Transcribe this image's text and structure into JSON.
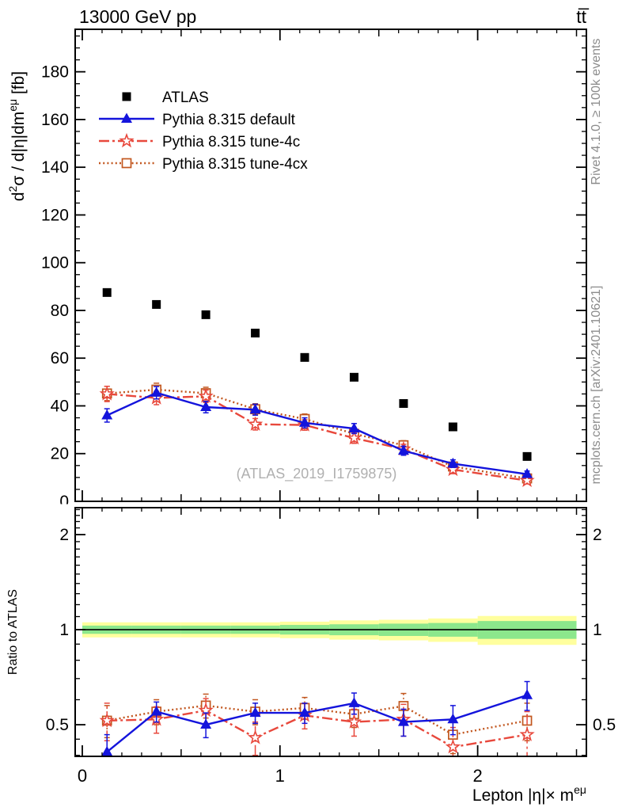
{
  "side_notes": {
    "rivet": "Rivet 4.1.0, ≥ 100k events",
    "mcplots": "mcplots.cern.ch [arXiv:2401.10621]"
  },
  "chart_data": {
    "type": "line",
    "title_left": "13000 GeV pp",
    "title_right": "tt̅",
    "watermark": "(ATLAS_2019_I1759875)",
    "xlabel": "Lepton |η| × m^eμ",
    "ylabel": "d²σ / d|η|dm^eμ [fb]",
    "ratio_label": "Ratio to ATLAS",
    "legend_position": "top-left",
    "grid": false,
    "x": [
      0.125,
      0.375,
      0.625,
      0.875,
      1.125,
      1.375,
      1.625,
      1.875,
      2.25
    ],
    "axes": {
      "x": {
        "min": -0.036,
        "max": 2.55,
        "majors": [
          0,
          1,
          2
        ],
        "labels": [
          "0",
          "1",
          "2"
        ],
        "mediums": [
          0.5,
          1.5,
          2.5
        ],
        "minor_step": 0.1,
        "title_parts": [
          {
            "text": "Lepton |η|× m"
          },
          {
            "text": "eμ",
            "sup": true
          }
        ]
      },
      "y": {
        "min": 0,
        "max": 197.8,
        "major_step": 20,
        "minor_step": 5,
        "tick_values": [
          0,
          20,
          40,
          60,
          80,
          100,
          120,
          140,
          160,
          180
        ],
        "tick_labels": [
          "0",
          "20",
          "40",
          "60",
          "80",
          "100",
          "120",
          "140",
          "160",
          "180"
        ],
        "title_parts": [
          {
            "text": "d"
          },
          {
            "text": "2",
            "sup": true
          },
          {
            "text": "σ / d|η|dm"
          },
          {
            "text": "eμ",
            "sup": true
          },
          {
            "text": " [fb]"
          }
        ]
      },
      "ratio_y": {
        "scale": "log",
        "min": 0.397,
        "max": 2.434,
        "majors": [
          0.5,
          1,
          2
        ],
        "tick_labels": [
          "0.5",
          "1",
          "2"
        ],
        "minors": [
          0.4,
          0.45,
          0.6,
          0.7,
          0.8,
          0.9,
          1.1,
          1.2,
          1.3,
          1.4,
          1.5,
          1.6,
          1.7,
          1.8,
          1.9,
          2.1,
          2.2,
          2.3,
          2.4
        ],
        "title": "Ratio to ATLAS"
      }
    },
    "series": [
      {
        "name": "ATLAS",
        "role": "data",
        "color": "#000000",
        "marker": "filled-square",
        "line": "none",
        "values": [
          87.5,
          82.5,
          78.2,
          70.5,
          60.3,
          52.0,
          41.0,
          31.2,
          18.8
        ]
      },
      {
        "name": "Pythia 8.315 default",
        "role": "mc",
        "color": "#1414dc",
        "marker": "filled-triangle",
        "line": "solid",
        "values": [
          36.0,
          45.5,
          39.5,
          38.4,
          32.9,
          30.5,
          21.2,
          15.8,
          11.4
        ],
        "errors": [
          2.8,
          2.6,
          2.4,
          2.3,
          2.1,
          2.1,
          1.9,
          1.6,
          1.3
        ],
        "ratio": [
          0.41,
          0.55,
          0.5,
          0.545,
          0.545,
          0.585,
          0.51,
          0.52,
          0.62
        ],
        "ratio_errors": [
          0.055,
          0.04,
          0.045,
          0.04,
          0.04,
          0.045,
          0.05,
          0.055,
          0.065
        ]
      },
      {
        "name": "Pythia 8.315 tune-4c",
        "role": "mc",
        "color": "#e8483c",
        "marker": "open-star",
        "line": "dashdot",
        "values": [
          45.0,
          43.3,
          44.0,
          32.3,
          32.0,
          26.5,
          21.9,
          13.3,
          8.7
        ],
        "errors": [
          3.2,
          2.8,
          2.6,
          2.4,
          2.2,
          2.2,
          2.0,
          1.7,
          1.4
        ],
        "ratio": [
          0.515,
          0.52,
          0.555,
          0.455,
          0.535,
          0.51,
          0.52,
          0.425,
          0.465
        ],
        "ratio_errors": [
          0.07,
          0.05,
          0.05,
          0.055,
          0.05,
          0.05,
          0.06,
          0.065,
          0.085
        ]
      },
      {
        "name": "Pythia 8.315 tune-4cx",
        "role": "mc",
        "color": "#c2571f",
        "marker": "open-square",
        "line": "dotted",
        "values": [
          45.2,
          46.8,
          45.3,
          38.6,
          34.5,
          28.3,
          23.5,
          14.6,
          9.6
        ],
        "errors": [
          3.0,
          2.7,
          2.5,
          2.3,
          2.1,
          2.1,
          1.9,
          1.6,
          1.3
        ],
        "ratio": [
          0.515,
          0.55,
          0.575,
          0.55,
          0.565,
          0.54,
          0.573,
          0.465,
          0.515
        ],
        "ratio_errors": [
          0.06,
          0.05,
          0.05,
          0.05,
          0.045,
          0.05,
          0.055,
          0.06,
          0.07
        ]
      }
    ],
    "uncertainty_band": {
      "reference": 1.0,
      "line_color": "#000000",
      "yellow_color": "#ffff9e",
      "green_color": "#8ce78c",
      "bin_edges": [
        0,
        0.25,
        0.5,
        0.75,
        1.0,
        1.25,
        1.5,
        1.75,
        2.0,
        2.5
      ],
      "yellow_halfwidth": [
        0.055,
        0.055,
        0.055,
        0.055,
        0.06,
        0.07,
        0.075,
        0.085,
        0.105
      ],
      "green_halfwidth": [
        0.03,
        0.03,
        0.03,
        0.03,
        0.035,
        0.04,
        0.045,
        0.05,
        0.065
      ]
    }
  }
}
